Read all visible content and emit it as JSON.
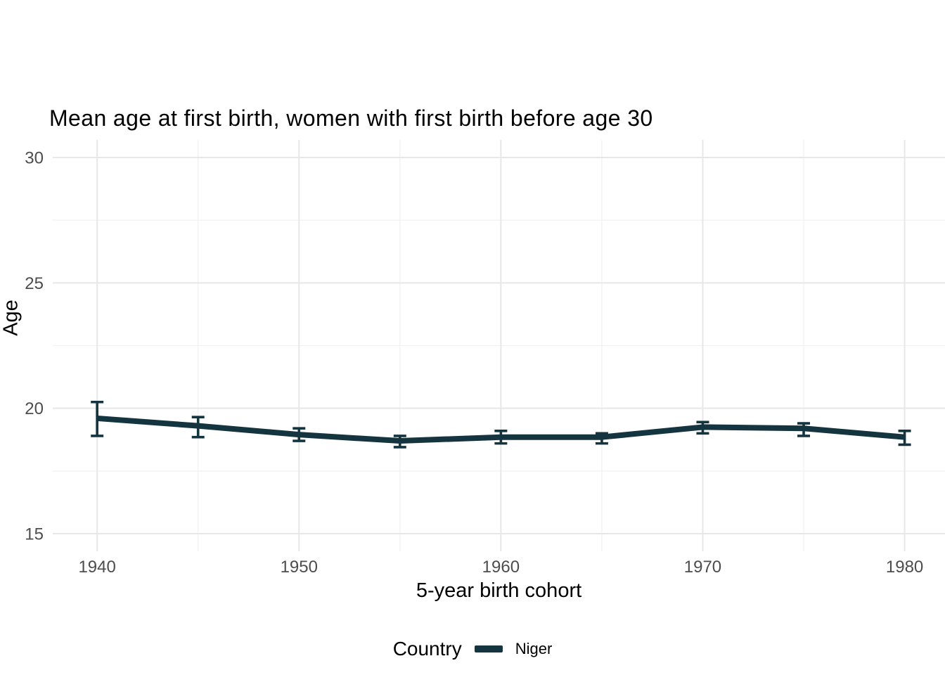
{
  "chart_data": {
    "type": "line",
    "title": "Mean age at first birth, women with first birth before age 30",
    "xlabel": "5-year birth cohort",
    "ylabel": "Age",
    "x": [
      1940,
      1945,
      1950,
      1955,
      1960,
      1965,
      1970,
      1975,
      1980
    ],
    "series": [
      {
        "name": "Niger",
        "color": "#14353f",
        "mean": [
          19.6,
          19.3,
          18.95,
          18.7,
          18.85,
          18.85,
          19.25,
          19.2,
          18.85
        ],
        "ci_low": [
          18.9,
          18.85,
          18.7,
          18.45,
          18.6,
          18.6,
          19.0,
          18.9,
          18.55
        ],
        "ci_high": [
          20.25,
          19.65,
          19.2,
          18.9,
          19.1,
          19.0,
          19.45,
          19.4,
          19.1
        ]
      }
    ],
    "error_bars": true,
    "x_ticks": [
      1940,
      1950,
      1960,
      1970,
      1980
    ],
    "x_minor_ticks": [
      1945,
      1955,
      1965,
      1975
    ],
    "y_ticks": [
      15,
      20,
      25,
      30
    ],
    "y_minor_ticks": [
      17.5,
      22.5,
      27.5
    ],
    "xlim": [
      1937.8,
      1982.0
    ],
    "ylim": [
      14.3,
      30.7
    ],
    "grid": true,
    "legend_position": "bottom"
  },
  "legend": {
    "title": "Country",
    "items": [
      {
        "label": "Niger",
        "color": "#14353f"
      }
    ]
  },
  "styles": {
    "background": "#ffffff",
    "title_color": "#000000",
    "tick_label_color": "#4d4d4d",
    "grid_major_color": "#e7e7e7",
    "grid_minor_color": "#f1f1f1"
  }
}
